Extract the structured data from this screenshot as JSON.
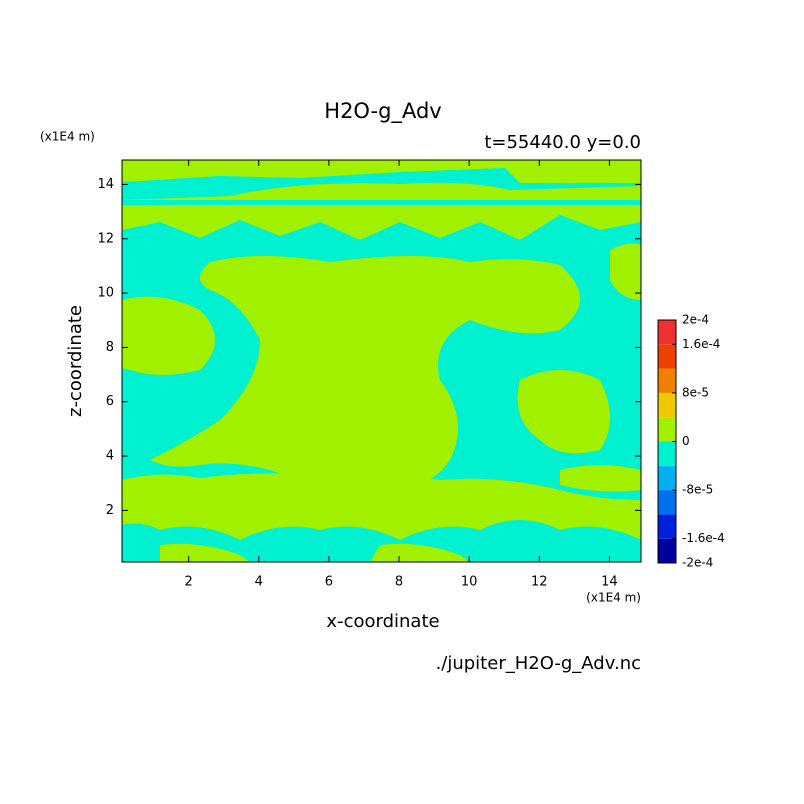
{
  "chart_data": {
    "type": "contourf",
    "title": "H2O-g_Adv",
    "subtitle": "t=55440.0 y=0.0",
    "xlabel": "x-coordinate",
    "ylabel": "z-coordinate",
    "xunit": "(x1E4 m)",
    "yunit": "(x1E4 m)",
    "source": "./jupiter_H2O-g_Adv.nc",
    "xlim": [
      0.1,
      14.9
    ],
    "ylim": [
      0.1,
      14.9
    ],
    "xticks": [
      2,
      4,
      6,
      8,
      10,
      12,
      14
    ],
    "yticks": [
      2,
      4,
      6,
      8,
      10,
      12,
      14
    ],
    "colorbar": {
      "levels": [
        -0.0002,
        -0.00016,
        -0.00012,
        -8e-05,
        -4e-05,
        0,
        4e-05,
        8e-05,
        0.00012,
        0.00016,
        0.0002
      ],
      "colors": [
        "#0000a0",
        "#0020e0",
        "#0070f0",
        "#00b0f0",
        "#00f0d0",
        "#a0f000",
        "#f0c800",
        "#f08000",
        "#f04000",
        "#f03030"
      ],
      "ticks": [
        {
          "value": -0.0002,
          "label": "-2e-4"
        },
        {
          "value": -0.00016,
          "label": "-1.6e-4"
        },
        {
          "value": -8e-05,
          "label": "-8e-5"
        },
        0,
        {
          "value": 8e-05,
          "label": "8e-5"
        },
        {
          "value": 0.00016,
          "label": "1.6e-4"
        },
        {
          "value": 0.0002,
          "label": "2e-4"
        }
      ]
    }
  }
}
